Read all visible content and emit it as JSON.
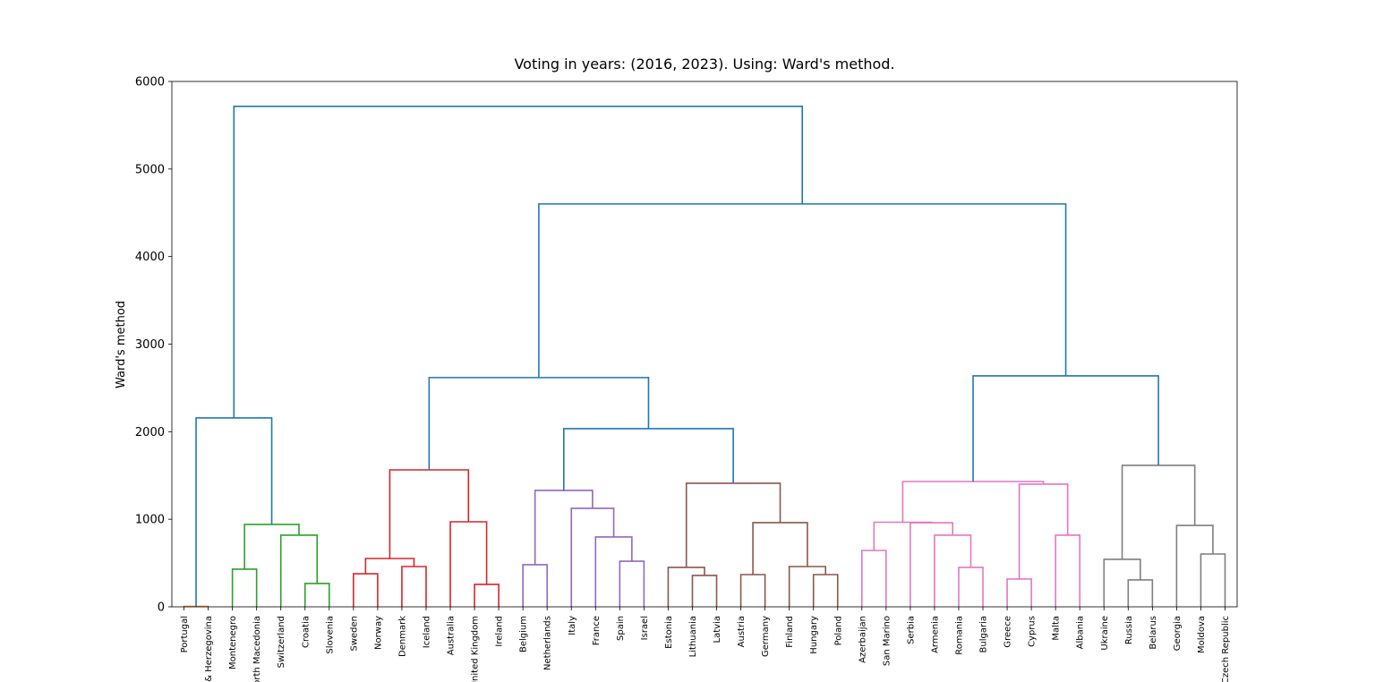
{
  "chart_data": {
    "type": "dendrogram",
    "title": "Voting in years: (2016, 2023). Using: Ward's method.",
    "y_label": "Ward's method",
    "xlim": [
      0,
      440
    ],
    "ylim": [
      0,
      6000
    ],
    "yticks": [
      0,
      1000,
      2000,
      3000,
      4000,
      5000,
      6000
    ],
    "xticks": [
      {
        "value": 5,
        "label": "Portugal"
      },
      {
        "value": 15,
        "label": "Bosnia & Herzegovina"
      },
      {
        "value": 25,
        "label": "Montenegro"
      },
      {
        "value": 35,
        "label": "North Macedonia"
      },
      {
        "value": 45,
        "label": "Switzerland"
      },
      {
        "value": 55,
        "label": "Croatia"
      },
      {
        "value": 65,
        "label": "Slovenia"
      },
      {
        "value": 75,
        "label": "Sweden"
      },
      {
        "value": 85,
        "label": "Norway"
      },
      {
        "value": 95,
        "label": "Denmark"
      },
      {
        "value": 105,
        "label": "Iceland"
      },
      {
        "value": 115,
        "label": "Australia"
      },
      {
        "value": 125,
        "label": "United Kingdom"
      },
      {
        "value": 135,
        "label": "Ireland"
      },
      {
        "value": 145,
        "label": "Belgium"
      },
      {
        "value": 155,
        "label": "Netherlands"
      },
      {
        "value": 165,
        "label": "Italy"
      },
      {
        "value": 175,
        "label": "France"
      },
      {
        "value": 185,
        "label": "Spain"
      },
      {
        "value": 195,
        "label": "Israel"
      },
      {
        "value": 205,
        "label": "Estonia"
      },
      {
        "value": 215,
        "label": "Lithuania"
      },
      {
        "value": 225,
        "label": "Latvia"
      },
      {
        "value": 235,
        "label": "Austria"
      },
      {
        "value": 245,
        "label": "Germany"
      },
      {
        "value": 255,
        "label": "Finland"
      },
      {
        "value": 265,
        "label": "Hungary"
      },
      {
        "value": 275,
        "label": "Poland"
      },
      {
        "value": 285,
        "label": "Azerbaijan"
      },
      {
        "value": 295,
        "label": "San Marino"
      },
      {
        "value": 305,
        "label": "Serbia"
      },
      {
        "value": 315,
        "label": "Armenia"
      },
      {
        "value": 325,
        "label": "Romania"
      },
      {
        "value": 335,
        "label": "Bulgaria"
      },
      {
        "value": 345,
        "label": "Greece"
      },
      {
        "value": 355,
        "label": "Cyprus"
      },
      {
        "value": 365,
        "label": "Malta"
      },
      {
        "value": 375,
        "label": "Albania"
      },
      {
        "value": 385,
        "label": "Ukraine"
      },
      {
        "value": 395,
        "label": "Russia"
      },
      {
        "value": 405,
        "label": "Belarus"
      },
      {
        "value": 415,
        "label": "Georgia"
      },
      {
        "value": 425,
        "label": "Moldova"
      },
      {
        "value": 435,
        "label": "Czech Republic"
      }
    ],
    "links": [
      {
        "icoord": [
          5,
          5,
          15,
          15
        ],
        "dcoord": [
          0,
          5,
          5,
          0
        ],
        "color": "#ff7f0e"
      },
      {
        "icoord": [
          25,
          25,
          35,
          35
        ],
        "dcoord": [
          0,
          430,
          430,
          0
        ],
        "color": "#2ca02c"
      },
      {
        "icoord": [
          55,
          55,
          65,
          65
        ],
        "dcoord": [
          0,
          266,
          266,
          0
        ],
        "color": "#2ca02c"
      },
      {
        "icoord": [
          45,
          45,
          60,
          60
        ],
        "dcoord": [
          0,
          818,
          818,
          266
        ],
        "color": "#2ca02c"
      },
      {
        "icoord": [
          30,
          30,
          52.5,
          52.5
        ],
        "dcoord": [
          430,
          941,
          941,
          818
        ],
        "color": "#2ca02c"
      },
      {
        "icoord": [
          10,
          10,
          41.25,
          41.25
        ],
        "dcoord": [
          5,
          2157,
          2157,
          941
        ],
        "color": "#1f77b4"
      },
      {
        "icoord": [
          75,
          75,
          85,
          85
        ],
        "dcoord": [
          0,
          378,
          378,
          0
        ],
        "color": "#d62728"
      },
      {
        "icoord": [
          95,
          95,
          105,
          105
        ],
        "dcoord": [
          0,
          460,
          460,
          0
        ],
        "color": "#d62728"
      },
      {
        "icoord": [
          80,
          80,
          100,
          100
        ],
        "dcoord": [
          378,
          552,
          552,
          460
        ],
        "color": "#d62728"
      },
      {
        "icoord": [
          125,
          125,
          135,
          135
        ],
        "dcoord": [
          0,
          256,
          256,
          0
        ],
        "color": "#d62728"
      },
      {
        "icoord": [
          115,
          115,
          130,
          130
        ],
        "dcoord": [
          0,
          971,
          971,
          256
        ],
        "color": "#d62728"
      },
      {
        "icoord": [
          90,
          90,
          122.5,
          122.5
        ],
        "dcoord": [
          552,
          1564,
          1564,
          971
        ],
        "color": "#d62728"
      },
      {
        "icoord": [
          145,
          145,
          155,
          155
        ],
        "dcoord": [
          0,
          481,
          481,
          0
        ],
        "color": "#9467bd"
      },
      {
        "icoord": [
          185,
          185,
          195,
          195
        ],
        "dcoord": [
          0,
          521,
          521,
          0
        ],
        "color": "#9467bd"
      },
      {
        "icoord": [
          175,
          175,
          190,
          190
        ],
        "dcoord": [
          0,
          798,
          798,
          521
        ],
        "color": "#9467bd"
      },
      {
        "icoord": [
          165,
          165,
          182.5,
          182.5
        ],
        "dcoord": [
          0,
          1125,
          1125,
          798
        ],
        "color": "#9467bd"
      },
      {
        "icoord": [
          150,
          150,
          173.75,
          173.75
        ],
        "dcoord": [
          481,
          1329,
          1329,
          1125
        ],
        "color": "#9467bd"
      },
      {
        "icoord": [
          215,
          215,
          225,
          225
        ],
        "dcoord": [
          0,
          358,
          358,
          0
        ],
        "color": "#8c564b"
      },
      {
        "icoord": [
          205,
          205,
          220,
          220
        ],
        "dcoord": [
          0,
          450,
          450,
          358
        ],
        "color": "#8c564b"
      },
      {
        "icoord": [
          235,
          235,
          245,
          245
        ],
        "dcoord": [
          0,
          368,
          368,
          0
        ],
        "color": "#8c564b"
      },
      {
        "icoord": [
          265,
          265,
          275,
          275
        ],
        "dcoord": [
          0,
          368,
          368,
          0
        ],
        "color": "#8c564b"
      },
      {
        "icoord": [
          255,
          255,
          270,
          270
        ],
        "dcoord": [
          0,
          460,
          460,
          368
        ],
        "color": "#8c564b"
      },
      {
        "icoord": [
          240,
          240,
          262.5,
          262.5
        ],
        "dcoord": [
          368,
          961,
          961,
          460
        ],
        "color": "#8c564b"
      },
      {
        "icoord": [
          212.5,
          212.5,
          251.25,
          251.25
        ],
        "dcoord": [
          450,
          1411,
          1411,
          961
        ],
        "color": "#8c564b"
      },
      {
        "icoord": [
          161.875,
          161.875,
          231.875,
          231.875
        ],
        "dcoord": [
          1329,
          2035,
          2035,
          1411
        ],
        "color": "#1f77b4"
      },
      {
        "icoord": [
          106.25,
          106.25,
          196.875,
          196.875
        ],
        "dcoord": [
          1564,
          2618,
          2618,
          2035
        ],
        "color": "#1f77b4"
      },
      {
        "icoord": [
          285,
          285,
          295,
          295
        ],
        "dcoord": [
          0,
          644,
          644,
          0
        ],
        "color": "#e377c2"
      },
      {
        "icoord": [
          325,
          325,
          335,
          335
        ],
        "dcoord": [
          0,
          450,
          450,
          0
        ],
        "color": "#e377c2"
      },
      {
        "icoord": [
          315,
          315,
          330,
          330
        ],
        "dcoord": [
          0,
          818,
          818,
          450
        ],
        "color": "#e377c2"
      },
      {
        "icoord": [
          305,
          305,
          322.5,
          322.5
        ],
        "dcoord": [
          0,
          960,
          960,
          818
        ],
        "color": "#e377c2"
      },
      {
        "icoord": [
          290,
          290,
          313.75,
          313.75
        ],
        "dcoord": [
          644,
          966,
          966,
          960
        ],
        "color": "#e377c2"
      },
      {
        "icoord": [
          345,
          345,
          355,
          355
        ],
        "dcoord": [
          0,
          317,
          317,
          0
        ],
        "color": "#e377c2"
      },
      {
        "icoord": [
          365,
          365,
          375,
          375
        ],
        "dcoord": [
          0,
          818,
          818,
          0
        ],
        "color": "#e377c2"
      },
      {
        "icoord": [
          350,
          350,
          370,
          370
        ],
        "dcoord": [
          317,
          1401,
          1401,
          818
        ],
        "color": "#e377c2"
      },
      {
        "icoord": [
          301.875,
          301.875,
          360,
          360
        ],
        "dcoord": [
          966,
          1431,
          1431,
          1401
        ],
        "color": "#e377c2"
      },
      {
        "icoord": [
          395,
          395,
          405,
          405
        ],
        "dcoord": [
          0,
          307,
          307,
          0
        ],
        "color": "#7f7f7f"
      },
      {
        "icoord": [
          385,
          385,
          400,
          400
        ],
        "dcoord": [
          0,
          542,
          542,
          307
        ],
        "color": "#7f7f7f"
      },
      {
        "icoord": [
          425,
          425,
          435,
          435
        ],
        "dcoord": [
          0,
          603,
          603,
          0
        ],
        "color": "#7f7f7f"
      },
      {
        "icoord": [
          415,
          415,
          430,
          430
        ],
        "dcoord": [
          0,
          930,
          930,
          603
        ],
        "color": "#7f7f7f"
      },
      {
        "icoord": [
          392.5,
          392.5,
          422.5,
          422.5
        ],
        "dcoord": [
          542,
          1616,
          1616,
          930
        ],
        "color": "#7f7f7f"
      },
      {
        "icoord": [
          330.9375,
          330.9375,
          407.5,
          407.5
        ],
        "dcoord": [
          1431,
          2638,
          2638,
          1616
        ],
        "color": "#1f77b4"
      },
      {
        "icoord": [
          151.5625,
          151.5625,
          369.21875,
          369.21875
        ],
        "dcoord": [
          2618,
          4601,
          4601,
          2638
        ],
        "color": "#1f77b4"
      },
      {
        "icoord": [
          25.625,
          25.625,
          260.390625,
          260.390625
        ],
        "dcoord": [
          2157,
          5716,
          5716,
          4601
        ],
        "color": "#1f77b4"
      }
    ]
  }
}
